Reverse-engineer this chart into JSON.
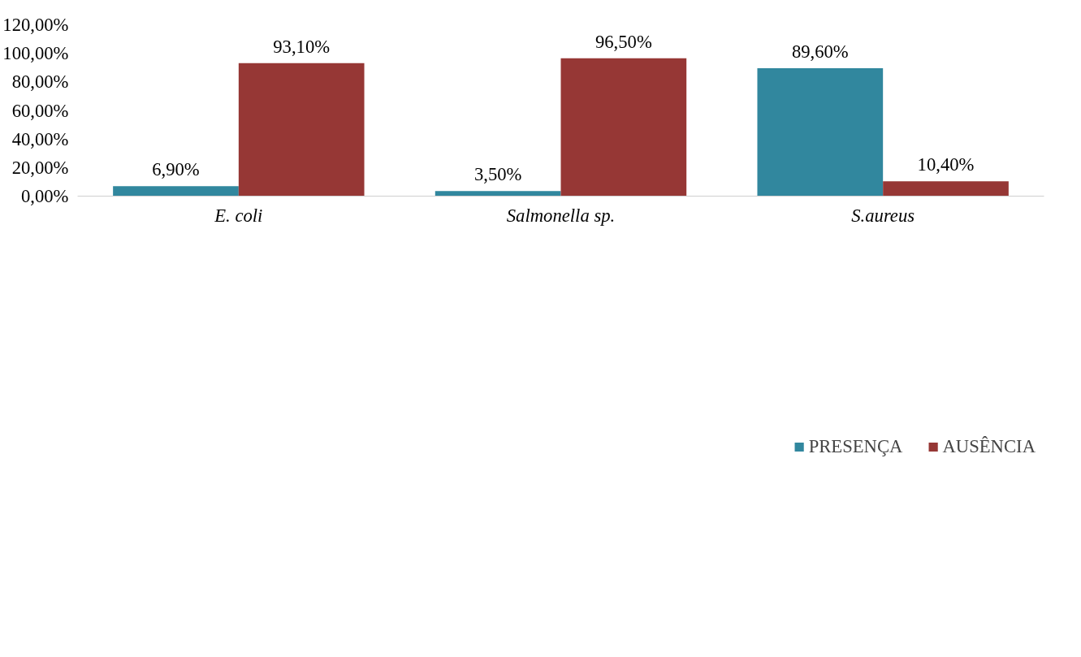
{
  "chart_data": {
    "type": "bar",
    "categories": [
      "E. coli",
      "Salmonella sp.",
      "S.aureus"
    ],
    "series": [
      {
        "name": "PRESENÇA",
        "color": "#31879e",
        "values": [
          6.9,
          3.5,
          89.6
        ],
        "value_labels": [
          "6,90%",
          "3,50%",
          "89,60%"
        ]
      },
      {
        "name": "AUSÊNCIA",
        "color": "#963735",
        "values": [
          93.1,
          96.5,
          10.4
        ],
        "value_labels": [
          "93,10%",
          "96,50%",
          "10,40%"
        ]
      }
    ],
    "ylim": [
      0,
      120
    ],
    "yticks": [
      {
        "value": 0,
        "label": "0,00%"
      },
      {
        "value": 20,
        "label": "20,00%"
      },
      {
        "value": 40,
        "label": "40,00%"
      },
      {
        "value": 60,
        "label": "60,00%"
      },
      {
        "value": 80,
        "label": "80,00%"
      },
      {
        "value": 100,
        "label": "100,00%"
      },
      {
        "value": 120,
        "label": "120,00%"
      }
    ],
    "grid": false,
    "legend": "bottom"
  }
}
